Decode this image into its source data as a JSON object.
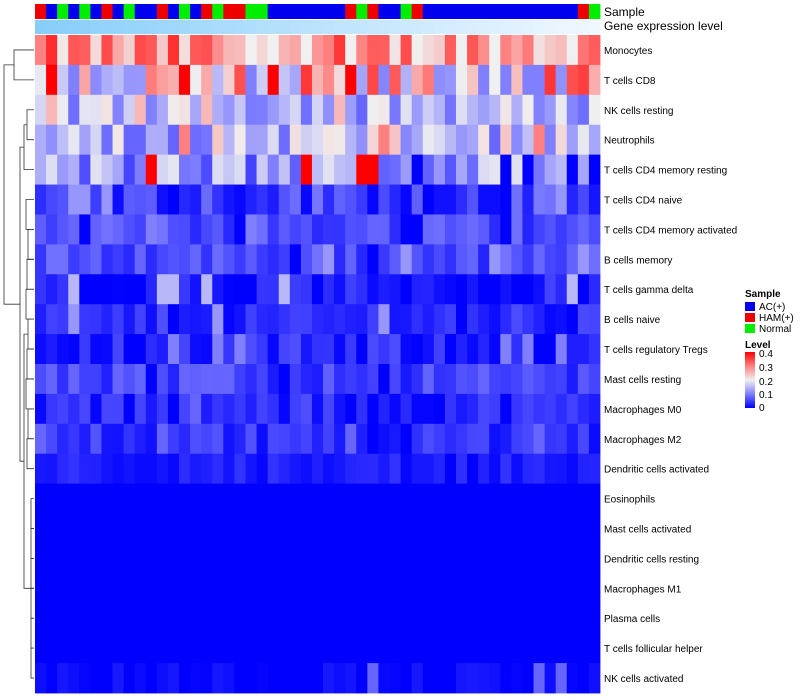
{
  "chart_data": {
    "type": "heatmap",
    "annotation_labels": {
      "sample": "Sample",
      "gene_expression": "Gene expression level"
    },
    "sample_groups": [
      "AC(+)",
      "HAM(+)",
      "Normal"
    ],
    "sample_group_colors": {
      "AC(+)": "#0000ee",
      "HAM(+)": "#ee0000",
      "Normal": "#00ee00"
    },
    "column_samples": [
      "HAM(+)",
      "AC(+)",
      "Normal",
      "AC(+)",
      "Normal",
      "AC(+)",
      "HAM(+)",
      "AC(+)",
      "Normal",
      "AC(+)",
      "AC(+)",
      "HAM(+)",
      "AC(+)",
      "Normal",
      "AC(+)",
      "HAM(+)",
      "Normal",
      "HAM(+)",
      "HAM(+)",
      "Normal",
      "Normal",
      "AC(+)",
      "AC(+)",
      "AC(+)",
      "AC(+)",
      "AC(+)",
      "AC(+)",
      "AC(+)",
      "HAM(+)",
      "Normal",
      "HAM(+)",
      "AC(+)",
      "AC(+)",
      "Normal",
      "HAM(+)",
      "AC(+)",
      "AC(+)",
      "AC(+)",
      "AC(+)",
      "AC(+)",
      "AC(+)",
      "AC(+)",
      "AC(+)",
      "AC(+)",
      "AC(+)",
      "AC(+)",
      "AC(+)",
      "AC(+)",
      "AC(+)",
      "HAM(+)",
      "Normal"
    ],
    "gene_expression_gradient": [
      "#87cefa",
      "#f0f8ff"
    ],
    "rows": [
      "Monocytes",
      "T cells CD8",
      "NK cells resting",
      "Neutrophils",
      "T cells CD4 memory resting",
      "T cells CD4 naive",
      "T cells CD4 memory activated",
      "B cells memory",
      "T cells gamma delta",
      "B cells naive",
      "T cells regulatory  Tregs",
      "Mast cells resting",
      "Macrophages M0",
      "Macrophages M2",
      "Dendritic cells activated",
      "Eosinophils",
      "Mast cells activated",
      "Dendritic cells resting",
      "Macrophages M1",
      "Plasma cells",
      "T cells follicular helper",
      "NK cells activated"
    ],
    "row_profiles": [
      {
        "mean": 0.27,
        "spread": 0.06,
        "min": 0.2,
        "max": 0.4
      },
      {
        "mean": 0.2,
        "spread": 0.1,
        "min": 0.1,
        "max": 0.4
      },
      {
        "mean": 0.15,
        "spread": 0.04,
        "min": 0.08,
        "max": 0.25
      },
      {
        "mean": 0.16,
        "spread": 0.05,
        "min": 0.08,
        "max": 0.3
      },
      {
        "mean": 0.12,
        "spread": 0.05,
        "min": 0.0,
        "max": 0.4
      },
      {
        "mean": 0.05,
        "spread": 0.03,
        "min": 0.0,
        "max": 0.12
      },
      {
        "mean": 0.06,
        "spread": 0.02,
        "min": 0.0,
        "max": 0.1
      },
      {
        "mean": 0.06,
        "spread": 0.02,
        "min": 0.0,
        "max": 0.12
      },
      {
        "mean": 0.02,
        "spread": 0.02,
        "min": 0.0,
        "max": 0.15
      },
      {
        "mean": 0.03,
        "spread": 0.02,
        "min": 0.0,
        "max": 0.12
      },
      {
        "mean": 0.03,
        "spread": 0.02,
        "min": 0.0,
        "max": 0.1
      },
      {
        "mean": 0.05,
        "spread": 0.02,
        "min": 0.0,
        "max": 0.08
      },
      {
        "mean": 0.03,
        "spread": 0.02,
        "min": 0.0,
        "max": 0.08
      },
      {
        "mean": 0.04,
        "spread": 0.02,
        "min": 0.0,
        "max": 0.08
      },
      {
        "mean": 0.02,
        "spread": 0.01,
        "min": 0.0,
        "max": 0.04
      },
      {
        "mean": 0.0,
        "spread": 0.0,
        "min": 0.0,
        "max": 0.0
      },
      {
        "mean": 0.0,
        "spread": 0.0,
        "min": 0.0,
        "max": 0.0
      },
      {
        "mean": 0.0,
        "spread": 0.0,
        "min": 0.0,
        "max": 0.0
      },
      {
        "mean": 0.0,
        "spread": 0.0,
        "min": 0.0,
        "max": 0.0
      },
      {
        "mean": 0.0,
        "spread": 0.0,
        "min": 0.0,
        "max": 0.0
      },
      {
        "mean": 0.0,
        "spread": 0.0,
        "min": 0.0,
        "max": 0.0
      },
      {
        "mean": 0.005,
        "spread": 0.01,
        "min": 0.0,
        "max": 0.08
      }
    ],
    "color_scale": {
      "min": 0,
      "max": 0.4,
      "stops": [
        {
          "value": 0.0,
          "color": "#0000ff"
        },
        {
          "value": 0.1,
          "color": "#8080ff"
        },
        {
          "value": 0.2,
          "color": "#f0f0f0"
        },
        {
          "value": 0.3,
          "color": "#ff8080"
        },
        {
          "value": 0.4,
          "color": "#ff0000"
        }
      ]
    },
    "legend_sample": {
      "title": "Sample",
      "items": [
        "AC(+)",
        "HAM(+)",
        "Normal"
      ]
    },
    "legend_level": {
      "title": "Level",
      "ticks": [
        "0.4",
        "0.3",
        "0.2",
        "0.1",
        "0"
      ]
    },
    "dendrogram": "row clustering (left side)"
  }
}
